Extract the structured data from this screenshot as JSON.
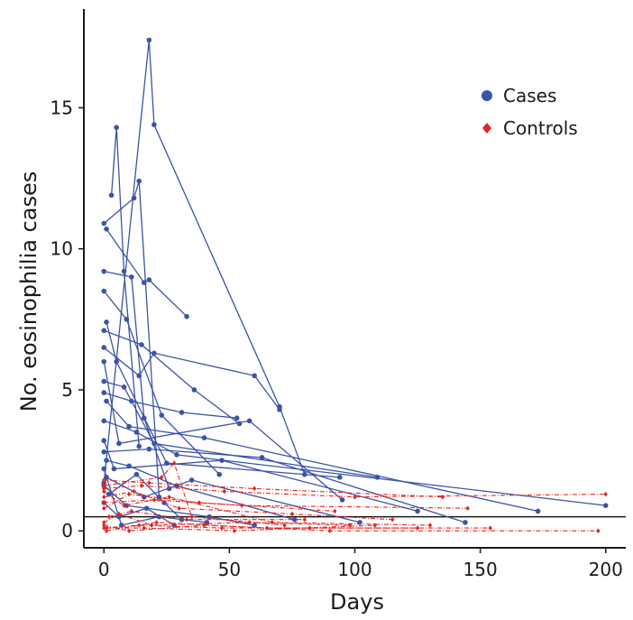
{
  "chart_data": {
    "type": "line",
    "xlabel": "Days",
    "ylabel": "No. eosinophilia cases",
    "xlim": [
      -8,
      208
    ],
    "ylim": [
      -0.6,
      18.5
    ],
    "xticks": [
      0,
      50,
      100,
      150,
      200
    ],
    "yticks": [
      0,
      5,
      10,
      15
    ],
    "grid": false,
    "legend_position": "top-right",
    "reference_line_y": 0.5,
    "colors": {
      "Cases": "#3a54a6",
      "Controls": "#e3241d",
      "reference": "#1a1a1a"
    },
    "series": [
      {
        "name": "Cases",
        "marker": "circle",
        "line_style": "solid",
        "lines": [
          [
            [
              0,
              1.7
            ],
            [
              18,
              17.4
            ],
            [
              20,
              14.4
            ],
            [
              70,
              4.4
            ],
            [
              80,
              2.0
            ]
          ],
          [
            [
              3,
              11.9
            ],
            [
              5,
              14.3
            ],
            [
              8,
              9.2
            ],
            [
              14,
              3.0
            ]
          ],
          [
            [
              0,
              10.9
            ],
            [
              12,
              11.8
            ],
            [
              14,
              12.4
            ],
            [
              22,
              1.2
            ]
          ],
          [
            [
              1,
              10.7
            ],
            [
              16,
              8.8
            ],
            [
              18,
              8.9
            ],
            [
              33,
              7.6
            ]
          ],
          [
            [
              0,
              9.2
            ],
            [
              11,
              9.0
            ],
            [
              16,
              4.0
            ],
            [
              26,
              1.5
            ]
          ],
          [
            [
              0,
              8.5
            ],
            [
              9,
              7.5
            ],
            [
              23,
              4.1
            ],
            [
              46,
              2.0
            ]
          ],
          [
            [
              0,
              7.1
            ],
            [
              15,
              6.6
            ],
            [
              36,
              5.0
            ],
            [
              54,
              3.8
            ]
          ],
          [
            [
              1,
              7.4
            ],
            [
              5,
              6.0
            ],
            [
              25,
              2.4
            ],
            [
              94,
              1.9
            ]
          ],
          [
            [
              0,
              6.5
            ],
            [
              14,
              5.5
            ],
            [
              20,
              6.3
            ],
            [
              60,
              5.5
            ],
            [
              70,
              4.3
            ]
          ],
          [
            [
              0,
              6.0
            ],
            [
              6,
              3.1
            ],
            [
              58,
              3.9
            ],
            [
              95,
              1.1
            ]
          ],
          [
            [
              0,
              5.3
            ],
            [
              8,
              5.1
            ],
            [
              20,
              3.1
            ],
            [
              109,
              1.9
            ]
          ],
          [
            [
              0,
              4.9
            ],
            [
              11,
              4.6
            ],
            [
              31,
              4.2
            ],
            [
              53,
              4.0
            ]
          ],
          [
            [
              1,
              4.6
            ],
            [
              10,
              3.7
            ],
            [
              40,
              3.3
            ],
            [
              173,
              0.7
            ]
          ],
          [
            [
              0,
              3.9
            ],
            [
              13,
              3.5
            ],
            [
              29,
              2.7
            ],
            [
              200,
              0.9
            ]
          ],
          [
            [
              0,
              3.2
            ],
            [
              4,
              2.2
            ],
            [
              47,
              2.5
            ],
            [
              125,
              0.7
            ]
          ],
          [
            [
              0,
              2.8
            ],
            [
              18,
              2.9
            ],
            [
              63,
              2.6
            ],
            [
              144,
              0.3
            ]
          ],
          [
            [
              1,
              2.5
            ],
            [
              10,
              2.3
            ],
            [
              29,
              1.6
            ],
            [
              76,
              0.4
            ]
          ],
          [
            [
              0,
              2.2
            ],
            [
              7,
              0.2
            ],
            [
              22,
              0.5
            ],
            [
              41,
              0.3
            ]
          ],
          [
            [
              1,
              1.9
            ],
            [
              16,
              1.2
            ],
            [
              35,
              1.8
            ],
            [
              102,
              0.3
            ]
          ],
          [
            [
              0,
              1.6
            ],
            [
              9,
              0.9
            ],
            [
              42,
              0.5
            ],
            [
              60,
              0.2
            ]
          ],
          [
            [
              2,
              1.3
            ],
            [
              13,
              2.0
            ],
            [
              24,
              1.0
            ],
            [
              31,
              0.4
            ]
          ],
          [
            [
              0,
              1.0
            ],
            [
              6,
              0.5
            ],
            [
              17,
              0.8
            ],
            [
              28,
              0.2
            ]
          ]
        ]
      },
      {
        "name": "Controls",
        "marker": "diamond",
        "line_style": "dashed",
        "lines": [
          [
            [
              0,
              1.5
            ],
            [
              15,
              1.6
            ],
            [
              48,
              1.4
            ],
            [
              100,
              1.2
            ],
            [
              200,
              1.3
            ]
          ],
          [
            [
              0,
              1.8
            ],
            [
              18,
              1.7
            ],
            [
              60,
              1.5
            ],
            [
              135,
              1.2
            ]
          ],
          [
            [
              0,
              1.2
            ],
            [
              12,
              1.4
            ],
            [
              30,
              0.8
            ],
            [
              75,
              0.6
            ],
            [
              115,
              0.4
            ]
          ],
          [
            [
              0,
              1.0
            ],
            [
              20,
              1.1
            ],
            [
              55,
              0.9
            ],
            [
              145,
              0.8
            ]
          ],
          [
            [
              0,
              0.8
            ],
            [
              10,
              1.3
            ],
            [
              38,
              1.0
            ],
            [
              92,
              0.7
            ]
          ],
          [
            [
              0,
              1.4
            ],
            [
              8,
              0.9
            ],
            [
              26,
              1.2
            ],
            [
              67,
              0.3
            ],
            [
              130,
              0.2
            ]
          ],
          [
            [
              0,
              0.1
            ],
            [
              14,
              0.2
            ],
            [
              47,
              0.1
            ],
            [
              82,
              0.1
            ],
            [
              154,
              0.1
            ]
          ],
          [
            [
              1,
              0.0
            ],
            [
              21,
              0.3
            ],
            [
              65,
              0.1
            ],
            [
              125,
              0.1
            ]
          ],
          [
            [
              0,
              0.2
            ],
            [
              10,
              0.0
            ],
            [
              40,
              0.2
            ],
            [
              90,
              0.0
            ],
            [
              197,
              0.0
            ]
          ],
          [
            [
              1,
              0.1
            ],
            [
              16,
              0.1
            ],
            [
              52,
              0.0
            ],
            [
              108,
              0.2
            ]
          ],
          [
            [
              0,
              1.6
            ],
            [
              23,
              1.9
            ],
            [
              28,
              2.4
            ],
            [
              35,
              0.5
            ],
            [
              72,
              0.2
            ]
          ],
          [
            [
              0,
              0.3
            ],
            [
              6,
              0.6
            ],
            [
              19,
              0.2
            ],
            [
              58,
              0.3
            ],
            [
              98,
              0.2
            ]
          ],
          [
            [
              2,
              0.5
            ],
            [
              11,
              0.7
            ],
            [
              33,
              0.4
            ],
            [
              80,
              0.4
            ]
          ]
        ]
      }
    ]
  }
}
